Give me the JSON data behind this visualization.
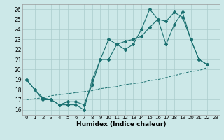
{
  "xlabel": "Humidex (Indice chaleur)",
  "bg_color": "#cce8e8",
  "line_color": "#1a7070",
  "grid_color": "#aacccc",
  "xlim": [
    -0.5,
    23.5
  ],
  "ylim": [
    15.5,
    26.5
  ],
  "yticks": [
    16,
    17,
    18,
    19,
    20,
    21,
    22,
    23,
    24,
    25,
    26
  ],
  "xticks": [
    0,
    1,
    2,
    3,
    4,
    5,
    6,
    7,
    8,
    9,
    10,
    11,
    12,
    13,
    14,
    15,
    16,
    17,
    18,
    19,
    20,
    21,
    22,
    23
  ],
  "line1_x": [
    0,
    1,
    2,
    3,
    4,
    5,
    6,
    7,
    8,
    9,
    10,
    11,
    12,
    13,
    14,
    15,
    16,
    17,
    18,
    19,
    20,
    21,
    22
  ],
  "line1_y": [
    19,
    18,
    17,
    17,
    16.5,
    16.5,
    16.5,
    16,
    19,
    21,
    23,
    22.5,
    22,
    22.5,
    24,
    26,
    25,
    22.5,
    24.5,
    25.7,
    23,
    21,
    20.5
  ],
  "line2_x": [
    0,
    1,
    2,
    3,
    4,
    5,
    6,
    7,
    8,
    9,
    10,
    11,
    12,
    13,
    14,
    15,
    16,
    17,
    18,
    19,
    20,
    21,
    22
  ],
  "line2_y": [
    19,
    18,
    17.2,
    17,
    16.5,
    16.8,
    16.8,
    16.5,
    18.5,
    21,
    21,
    22.5,
    22.8,
    23,
    23.3,
    24.2,
    25,
    24.8,
    25.7,
    25.2,
    23,
    21,
    20.5
  ],
  "line3_x": [
    0,
    1,
    2,
    3,
    4,
    5,
    6,
    7,
    8,
    9,
    10,
    11,
    12,
    13,
    14,
    15,
    16,
    17,
    18,
    19,
    20,
    21,
    22
  ],
  "line3_y": [
    17.0,
    17.1,
    17.2,
    17.4,
    17.5,
    17.6,
    17.7,
    17.8,
    17.9,
    18.1,
    18.2,
    18.3,
    18.5,
    18.6,
    18.7,
    18.9,
    19.0,
    19.2,
    19.4,
    19.6,
    19.8,
    19.9,
    20.2
  ]
}
